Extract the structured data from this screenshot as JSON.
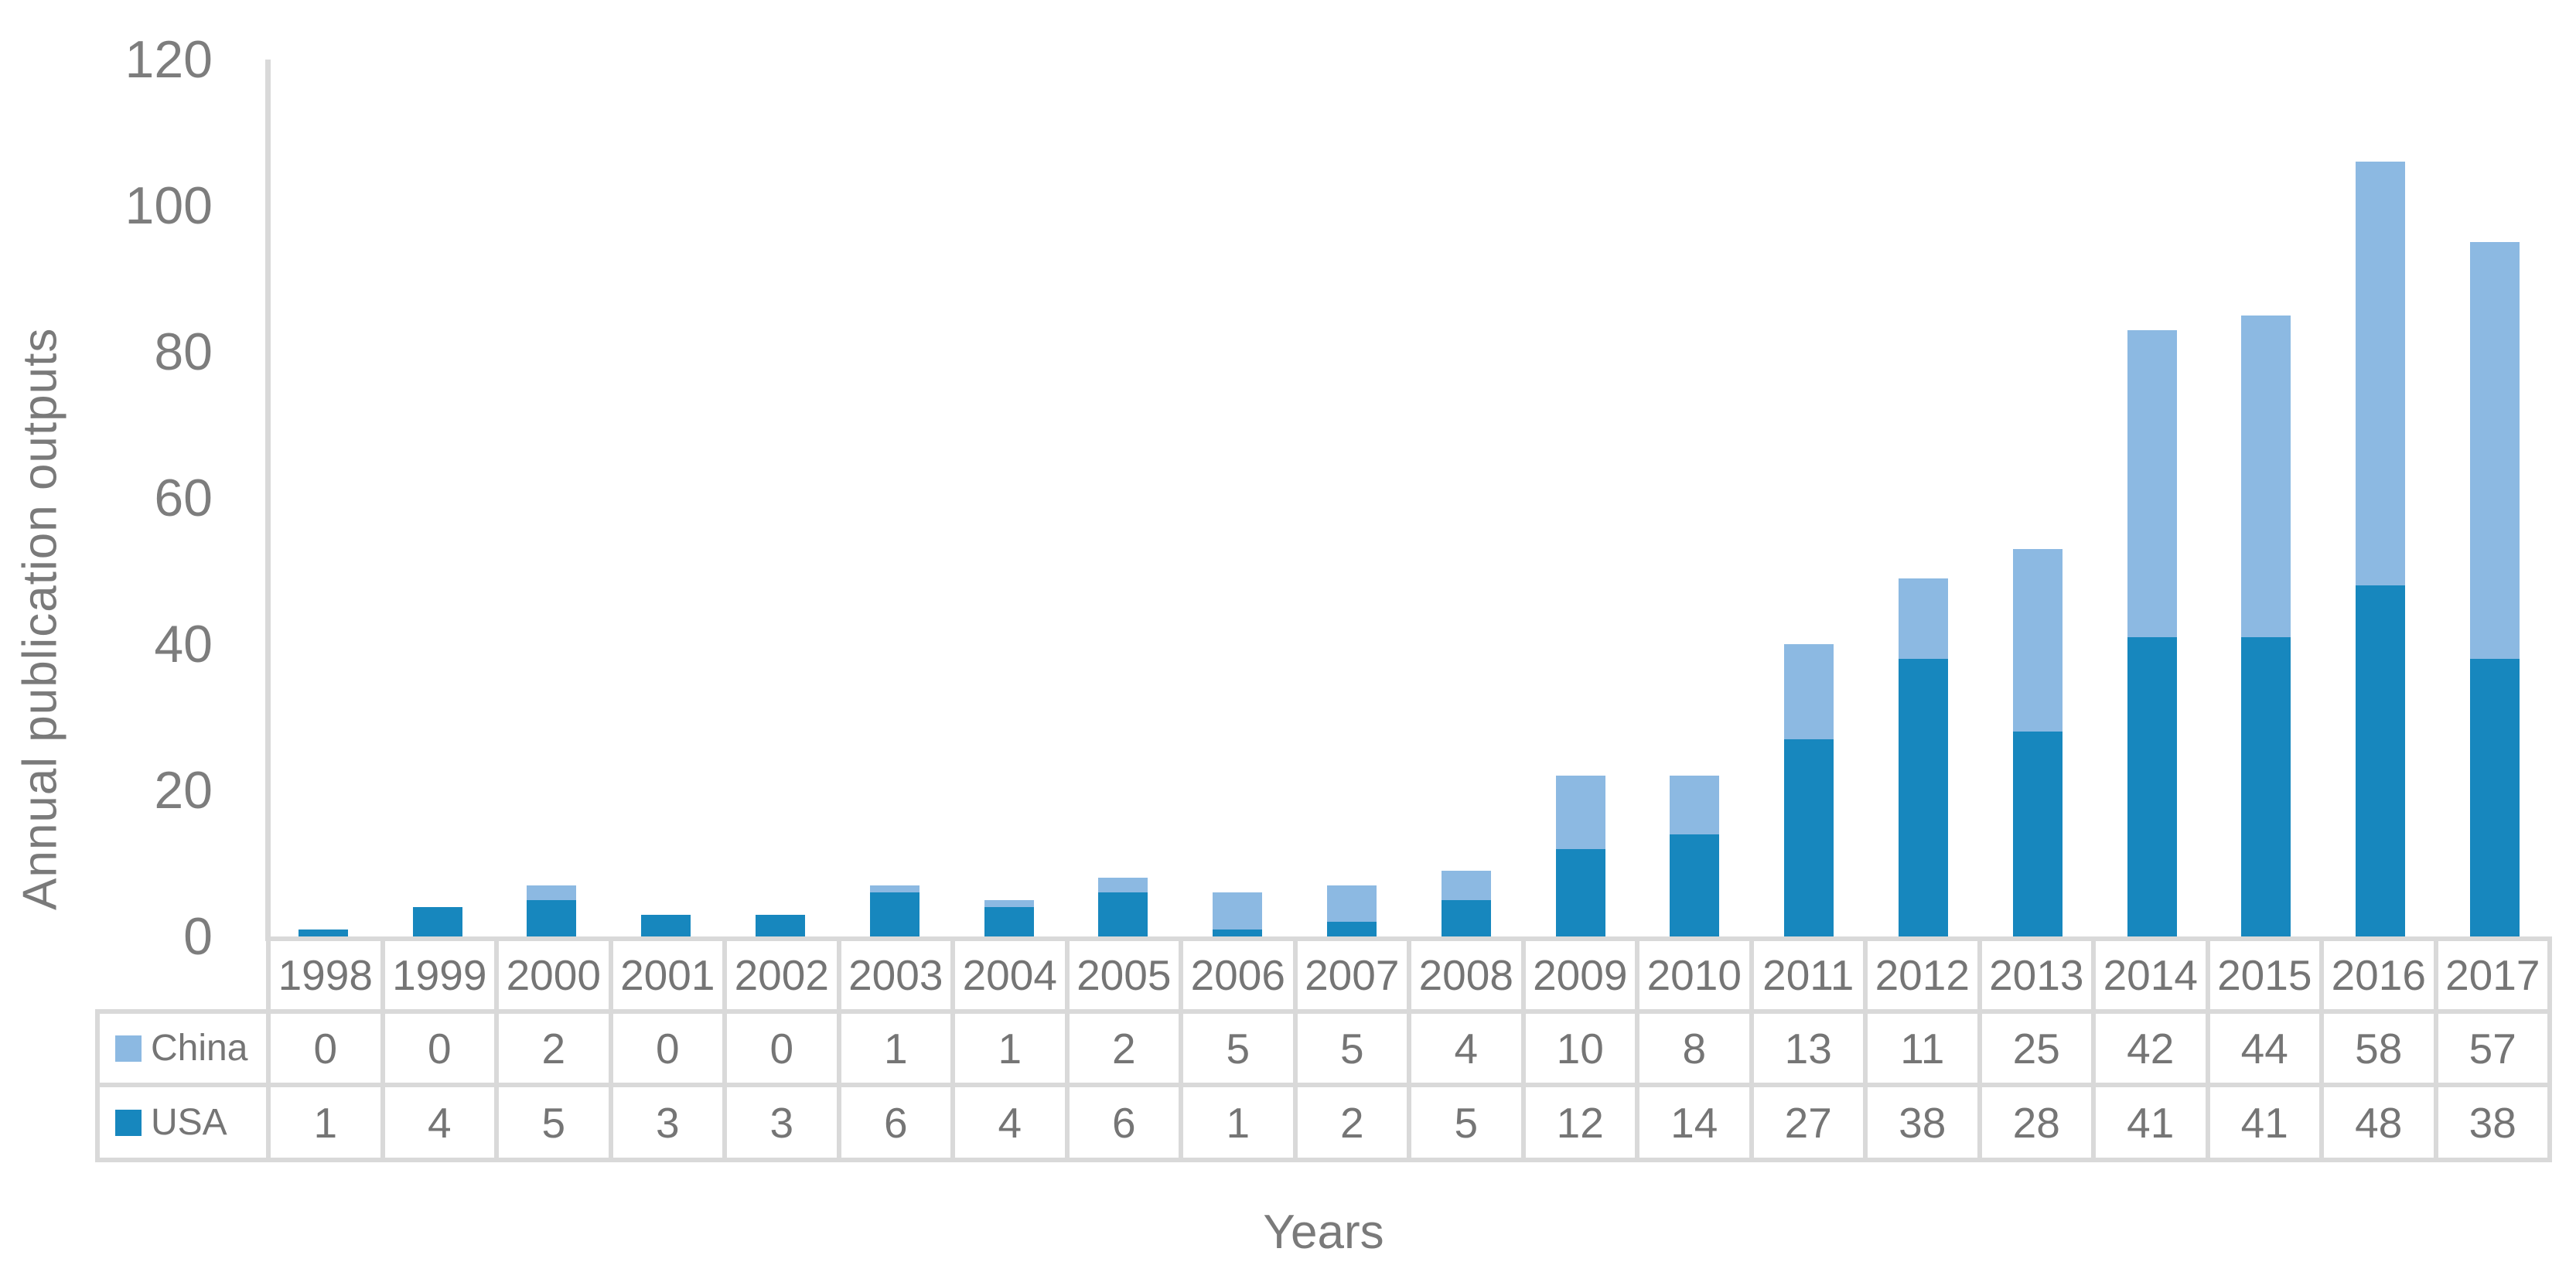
{
  "figure": {
    "y_axis_title": "Annual publication outputs",
    "x_axis_title": "Years"
  },
  "chart_data": {
    "type": "bar",
    "stacked": true,
    "title": "",
    "xlabel": "Years",
    "ylabel": "Annual publication outputs",
    "categories": [
      "1998",
      "1999",
      "2000",
      "2001",
      "2002",
      "2003",
      "2004",
      "2005",
      "2006",
      "2007",
      "2008",
      "2009",
      "2010",
      "2011",
      "2012",
      "2013",
      "2014",
      "2015",
      "2016",
      "2017"
    ],
    "series": [
      {
        "name": "China",
        "color": "#8CB9E2",
        "values": [
          0,
          0,
          2,
          0,
          0,
          1,
          1,
          2,
          5,
          5,
          4,
          10,
          8,
          13,
          11,
          25,
          42,
          44,
          58,
          57
        ]
      },
      {
        "name": "USA",
        "color": "#1787BE",
        "values": [
          1,
          4,
          5,
          3,
          3,
          6,
          4,
          6,
          1,
          2,
          5,
          12,
          14,
          27,
          38,
          28,
          41,
          41,
          48,
          38
        ]
      }
    ],
    "stack_order_bottom_to_top": [
      "USA",
      "China"
    ],
    "ylim": [
      0,
      120
    ],
    "yticks": [
      0,
      20,
      40,
      60,
      80,
      100,
      120
    ],
    "grid": false,
    "legend_position": "table-left",
    "data_table_shown": true
  },
  "style": {
    "text_color": "#7a7a7a",
    "axis_line_color": "#D9D9D9",
    "table_border_color": "#D9D9D9",
    "background": "#FFFFFF",
    "series_colors": {
      "China": "#8CB9E2",
      "USA": "#1787BE"
    }
  }
}
